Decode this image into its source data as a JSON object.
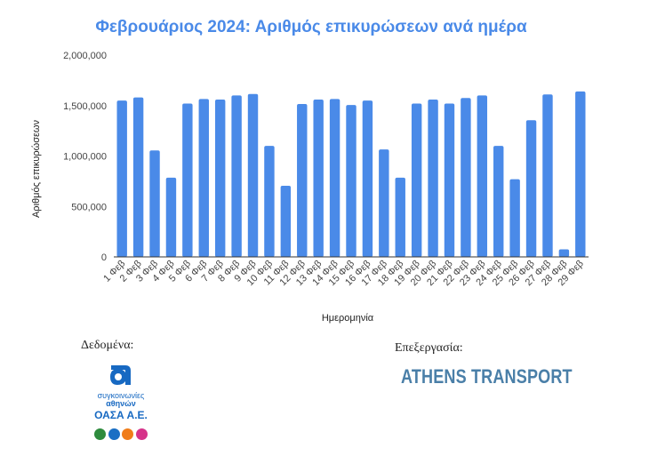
{
  "chart_data": {
    "type": "bar",
    "title": "Φεβρουάριος 2024: Αριθμός επικυρώσεων ανά ημέρα",
    "xlabel": "Ημερομηνία",
    "ylabel": "Αριθμός επικυρώσεων",
    "ylim": [
      0,
      2000000
    ],
    "yticks": [
      "2,000,000",
      "1,500,000",
      "1,000,000",
      "500,000",
      "0"
    ],
    "ytick_values": [
      2000000,
      1500000,
      1000000,
      500000,
      0
    ],
    "grid": false,
    "legend": "none",
    "bar_color": "#4a8ae8",
    "categories": [
      "1 Φεβ",
      "2 Φεβ",
      "3 Φεβ",
      "4 Φεβ",
      "5 Φεβ",
      "6 Φεβ",
      "7 Φεβ",
      "8 Φεβ",
      "9 Φεβ",
      "10 Φεβ",
      "11 Φεβ",
      "12 Φεβ",
      "13 Φεβ",
      "14 Φεβ",
      "15 Φεβ",
      "16 Φεβ",
      "17 Φεβ",
      "18 Φεβ",
      "19 Φεβ",
      "20 Φεβ",
      "21 Φεβ",
      "22 Φεβ",
      "23 Φεβ",
      "24 Φεβ",
      "25 Φεβ",
      "26 Φεβ",
      "27 Φεβ",
      "28 Φεβ",
      "29 Φεβ"
    ],
    "values": [
      1550000,
      1580000,
      1055000,
      785000,
      1520000,
      1565000,
      1560000,
      1600000,
      1615000,
      1100000,
      705000,
      1515000,
      1560000,
      1565000,
      1505000,
      1550000,
      1065000,
      785000,
      1520000,
      1560000,
      1520000,
      1575000,
      1600000,
      1100000,
      770000,
      1355000,
      1610000,
      75000,
      1640000
    ]
  },
  "footer": {
    "data_label": "Δεδομένα:",
    "processing_label": "Επεξεργασία:",
    "oasa": {
      "line1": "συγκοινωνίες",
      "line2": "αθηνών",
      "line3": "ΟΑΣΑ Α.Ε.",
      "brand_color": "#1769c2",
      "mode_colors": [
        "#2e8b3d",
        "#1a6fc4",
        "#f07d1a",
        "#d6338a"
      ]
    },
    "athens_transport": "ATHENS TRANSPORT"
  }
}
